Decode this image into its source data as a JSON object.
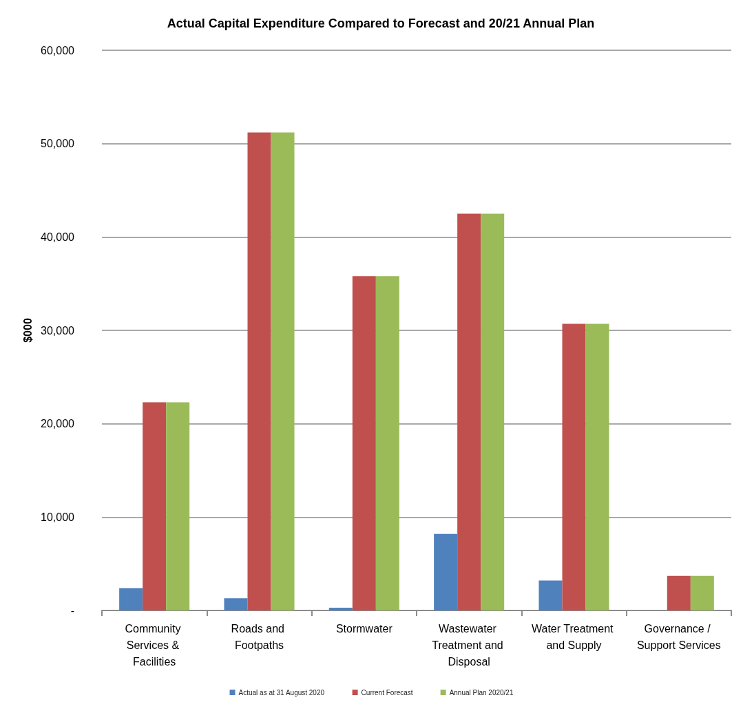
{
  "chart_data": {
    "type": "bar",
    "title": "Actual Capital Expenditure Compared to Forecast and 20/21 Annual Plan",
    "ylabel": "$000",
    "categories": [
      "Community Services & Facilities",
      "Roads and Footpaths",
      "Stormwater",
      "Wastewater Treatment and Disposal",
      "Water Treatment and Supply",
      "Governance / Support Services"
    ],
    "series": [
      {
        "name": "Actual as at 31 August 2020",
        "color": "#4f81bd",
        "values": [
          2400,
          1300,
          300,
          8200,
          3200,
          0
        ]
      },
      {
        "name": "Current Forecast",
        "color": "#c0504d",
        "values": [
          22300,
          51200,
          35800,
          42500,
          30700,
          3700
        ]
      },
      {
        "name": "Annual Plan 2020/21",
        "color": "#9bbb59",
        "values": [
          22300,
          51200,
          35800,
          42500,
          30700,
          3700
        ]
      }
    ],
    "ylim": [
      0,
      60000
    ],
    "yticks": [
      {
        "value": 0,
        "label": "-"
      },
      {
        "value": 10000,
        "label": "10,000"
      },
      {
        "value": 20000,
        "label": "20,000"
      },
      {
        "value": 30000,
        "label": "30,000"
      },
      {
        "value": 40000,
        "label": "40,000"
      },
      {
        "value": 50000,
        "label": "50,000"
      },
      {
        "value": 60000,
        "label": "60,000"
      }
    ],
    "grid": "y",
    "legend": "bottom"
  }
}
